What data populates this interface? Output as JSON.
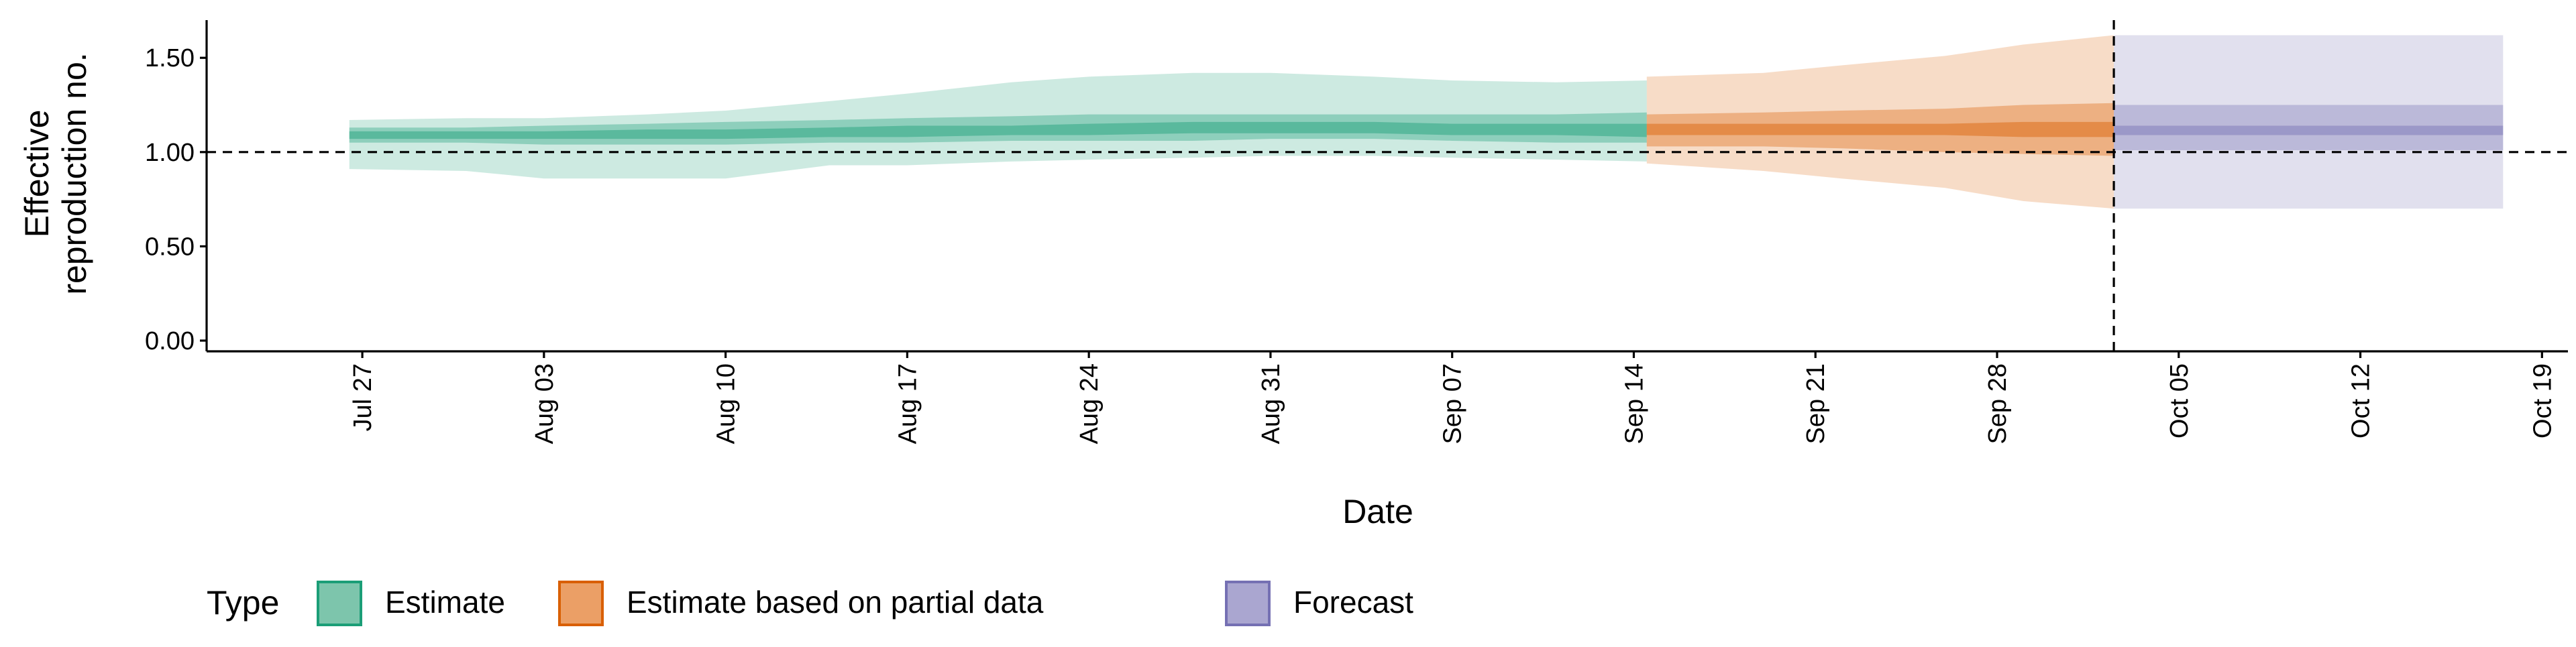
{
  "chart_data": {
    "type": "area",
    "xlabel": "Date",
    "ylabel_lines": [
      "Effective",
      "reproduction no."
    ],
    "ylim": [
      0,
      1.7
    ],
    "xlim": [
      "2020-07-21",
      "2020-10-20"
    ],
    "y_ticks": [
      0.0,
      0.5,
      1.0,
      1.5
    ],
    "y_tick_labels": [
      "0.00",
      "0.50",
      "1.00",
      "1.50"
    ],
    "x_ticks": [
      "2020-07-27",
      "2020-08-03",
      "2020-08-10",
      "2020-08-17",
      "2020-08-24",
      "2020-08-31",
      "2020-09-07",
      "2020-09-14",
      "2020-09-21",
      "2020-09-28",
      "2020-10-05",
      "2020-10-12",
      "2020-10-19"
    ],
    "x_tick_labels": [
      "Jul 27",
      "Aug 03",
      "Aug 10",
      "Aug 17",
      "Aug 24",
      "Aug 31",
      "Sep 07",
      "Sep 14",
      "Sep 21",
      "Sep 28",
      "Oct 05",
      "Oct 12",
      "Oct 19"
    ],
    "reference_hline": 1.0,
    "reference_vline": "2020-10-02",
    "grid": false,
    "legend": {
      "title": "Type",
      "position": "bottom-left",
      "entries": [
        {
          "label": "Estimate",
          "fill": "#7dc5ac",
          "stroke": "#1b9e77"
        },
        {
          "label": "Estimate based on partial data",
          "fill": "#eb9f66",
          "stroke": "#d95f02"
        },
        {
          "label": "Forecast",
          "fill": "#aaa6d0",
          "stroke": "#7570b3"
        }
      ]
    },
    "series": [
      {
        "name": "Estimate",
        "color": "#1b9e77",
        "x": [
          "2020-07-27",
          "2020-07-31",
          "2020-08-03",
          "2020-08-07",
          "2020-08-10",
          "2020-08-14",
          "2020-08-17",
          "2020-08-21",
          "2020-08-24",
          "2020-08-28",
          "2020-08-31",
          "2020-09-04",
          "2020-09-07",
          "2020-09-11",
          "2020-09-14"
        ],
        "median": [
          1.09,
          1.09,
          1.09,
          1.1,
          1.1,
          1.11,
          1.11,
          1.12,
          1.12,
          1.13,
          1.13,
          1.13,
          1.12,
          1.12,
          1.12
        ],
        "lower_20": [
          1.07,
          1.07,
          1.07,
          1.07,
          1.07,
          1.08,
          1.08,
          1.09,
          1.09,
          1.1,
          1.1,
          1.1,
          1.09,
          1.09,
          1.08
        ],
        "upper_20": [
          1.11,
          1.11,
          1.11,
          1.12,
          1.12,
          1.13,
          1.14,
          1.14,
          1.15,
          1.16,
          1.16,
          1.16,
          1.15,
          1.15,
          1.15
        ],
        "lower_50": [
          1.05,
          1.05,
          1.04,
          1.04,
          1.04,
          1.05,
          1.05,
          1.06,
          1.06,
          1.06,
          1.07,
          1.07,
          1.06,
          1.05,
          1.05
        ],
        "upper_50": [
          1.13,
          1.13,
          1.14,
          1.15,
          1.16,
          1.17,
          1.18,
          1.19,
          1.2,
          1.2,
          1.2,
          1.2,
          1.2,
          1.2,
          1.21
        ],
        "lower_90": [
          0.91,
          0.9,
          0.86,
          0.86,
          0.86,
          0.93,
          0.93,
          0.95,
          0.96,
          0.97,
          0.98,
          0.98,
          0.97,
          0.96,
          0.95
        ],
        "upper_90": [
          1.17,
          1.18,
          1.18,
          1.2,
          1.22,
          1.27,
          1.31,
          1.37,
          1.4,
          1.42,
          1.42,
          1.4,
          1.38,
          1.37,
          1.38
        ]
      },
      {
        "name": "Estimate based on partial data",
        "color": "#d95f02",
        "x": [
          "2020-09-15",
          "2020-09-19",
          "2020-09-22",
          "2020-09-26",
          "2020-09-29",
          "2020-10-02"
        ],
        "median": [
          1.12,
          1.12,
          1.12,
          1.12,
          1.12,
          1.12
        ],
        "lower_20": [
          1.09,
          1.09,
          1.09,
          1.09,
          1.08,
          1.08
        ],
        "upper_20": [
          1.15,
          1.15,
          1.15,
          1.15,
          1.16,
          1.16
        ],
        "lower_50": [
          1.03,
          1.03,
          1.02,
          1.0,
          0.99,
          0.98
        ],
        "upper_50": [
          1.2,
          1.21,
          1.22,
          1.23,
          1.25,
          1.26
        ],
        "lower_90": [
          0.94,
          0.9,
          0.86,
          0.81,
          0.74,
          0.7
        ],
        "upper_90": [
          1.4,
          1.42,
          1.46,
          1.51,
          1.57,
          1.62
        ]
      },
      {
        "name": "Forecast",
        "color": "#7570b3",
        "x": [
          "2020-10-03",
          "2020-10-17"
        ],
        "median": [
          1.12,
          1.12
        ],
        "lower_20": [
          1.09,
          1.09
        ],
        "upper_20": [
          1.14,
          1.14
        ],
        "lower_50": [
          1.01,
          1.01
        ],
        "upper_50": [
          1.25,
          1.25
        ],
        "lower_90": [
          0.7,
          0.7
        ],
        "upper_90": [
          1.62,
          1.62
        ]
      }
    ]
  }
}
